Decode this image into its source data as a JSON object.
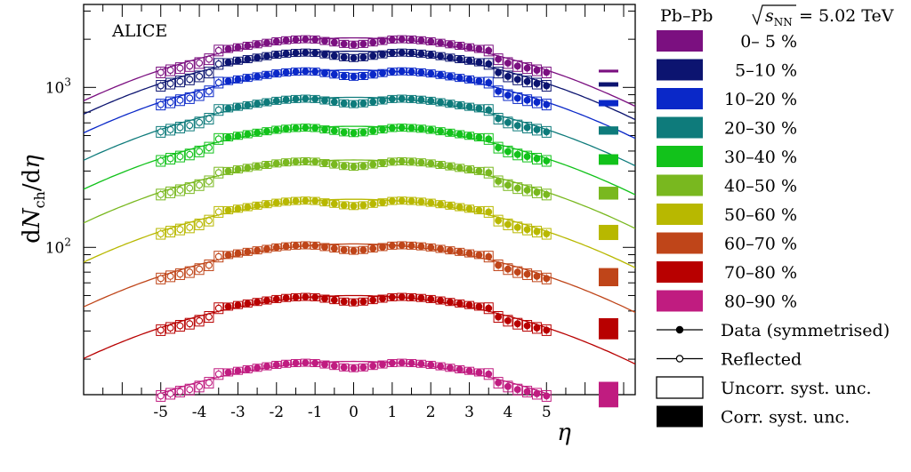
{
  "chart_data": {
    "type": "scatter",
    "annotation": "ALICE",
    "system": "Pb–Pb",
    "energy_label": "= 5.02 TeV",
    "xlabel": "η",
    "ylabel_parts": {
      "d1": "d",
      "N": "N",
      "ch": "ch",
      "slash": "/d",
      "eta": "η"
    },
    "xlim": [
      -7.0,
      7.3
    ],
    "ylim": [
      12,
      3300
    ],
    "log_y": true,
    "x_ticks": [
      -5,
      -4,
      -3,
      -2,
      -1,
      0,
      1,
      2,
      3,
      4,
      5
    ],
    "x_tick_labels": [
      "-5",
      "-4",
      "-3",
      "-2",
      "-1",
      "0",
      "1",
      "2",
      "3",
      "4",
      "5"
    ],
    "y_major_labels": [
      {
        "value": 100,
        "base": "10",
        "exp": "2"
      },
      {
        "value": 1000,
        "base": "10",
        "exp": "3"
      }
    ],
    "eta_points": [
      -5.0,
      -4.75,
      -4.5,
      -4.25,
      -4.0,
      -3.75,
      -3.5,
      -3.25,
      -3.0,
      -2.75,
      -2.5,
      -2.25,
      -2.0,
      -1.75,
      -1.5,
      -1.25,
      -1.0,
      -0.75,
      -0.5,
      -0.25,
      0.0,
      0.25,
      0.5,
      0.75,
      1.0,
      1.25,
      1.5,
      1.75,
      2.0,
      2.25,
      2.5,
      2.75,
      3.0,
      3.25,
      3.5,
      3.75,
      4.0,
      4.25,
      4.5,
      4.75,
      5.0
    ],
    "shape_factors": [
      0.62,
      0.64,
      0.66,
      0.68,
      0.71,
      0.75,
      0.85,
      0.87,
      0.89,
      0.91,
      0.93,
      0.95,
      0.97,
      0.985,
      0.995,
      1.0,
      0.995,
      0.975,
      0.955,
      0.935,
      0.925,
      0.935,
      0.955,
      0.975,
      0.995,
      1.0,
      0.995,
      0.985,
      0.97,
      0.95,
      0.93,
      0.91,
      0.89,
      0.87,
      0.85,
      0.75,
      0.71,
      0.68,
      0.66,
      0.64,
      0.62
    ],
    "series": [
      {
        "name": "0– 5 %",
        "color": "#7b1080",
        "peak": 2000,
        "corr_unc": 0.02
      },
      {
        "name": "5–10 %",
        "color": "#0c1470",
        "peak": 1650,
        "corr_unc": 0.02
      },
      {
        "name": "10–20 %",
        "color": "#0a28c8",
        "peak": 1260,
        "corr_unc": 0.022
      },
      {
        "name": "20–30 %",
        "color": "#0e7b7b",
        "peak": 850,
        "corr_unc": 0.025
      },
      {
        "name": "30–40 %",
        "color": "#12c21b",
        "peak": 560,
        "corr_unc": 0.03
      },
      {
        "name": "40–50 %",
        "color": "#79b81f",
        "peak": 345,
        "corr_unc": 0.035
      },
      {
        "name": "50–60 %",
        "color": "#b8b800",
        "peak": 196,
        "corr_unc": 0.04
      },
      {
        "name": "60–70 %",
        "color": "#bf4519",
        "peak": 103,
        "corr_unc": 0.05
      },
      {
        "name": "70–80 %",
        "color": "#b80000",
        "peak": 49,
        "corr_unc": 0.06
      },
      {
        "name": "80–90 %",
        "color": "#c01c80",
        "peak": 19,
        "corr_unc": 0.08
      }
    ],
    "legend_extra": [
      {
        "name": "Data (symmetrised)",
        "kind": "filled-marker"
      },
      {
        "name": "Reflected",
        "kind": "open-marker"
      },
      {
        "name": "Uncorr. syst. unc.",
        "kind": "open-box"
      },
      {
        "name": "Corr. syst. unc.",
        "kind": "filled-box"
      }
    ],
    "legend_position": "right-outside",
    "grid": false
  }
}
